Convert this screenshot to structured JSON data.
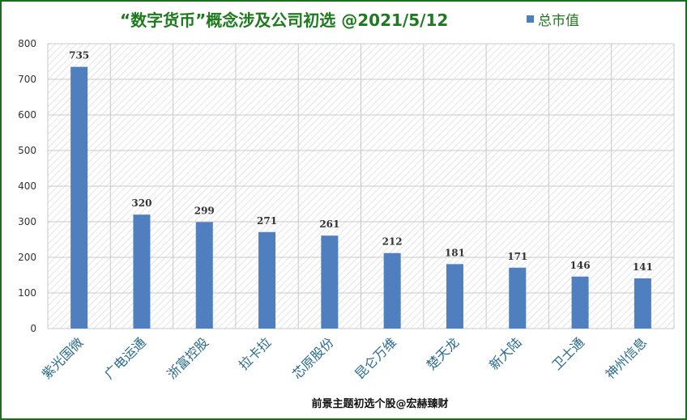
{
  "chart_data": {
    "type": "bar",
    "title": "“数字货币”概念涉及公司初选 @2021/5/12",
    "legend": {
      "label": "总市值",
      "position": "top-right"
    },
    "series": [
      {
        "name": "总市值",
        "color": "#4f7fbf",
        "values": [
          735,
          320,
          299,
          271,
          261,
          212,
          181,
          171,
          146,
          141
        ]
      }
    ],
    "categories": [
      "紫光国微",
      "广电运通",
      "浙富控股",
      "拉卡拉",
      "芯原股份",
      "昆仑万维",
      "楚天龙",
      "新大陆",
      "卫士通",
      "神州信息"
    ],
    "data_labels": [
      "735",
      "320",
      "299",
      "271",
      "261",
      "212",
      "181",
      "171",
      "146",
      "141"
    ],
    "ylim": [
      0,
      800
    ],
    "yticks": [
      "0",
      "100",
      "200",
      "300",
      "400",
      "500",
      "600",
      "700",
      "800"
    ],
    "grid": true,
    "source": "前景主题初选个股@宏赫臻财"
  }
}
